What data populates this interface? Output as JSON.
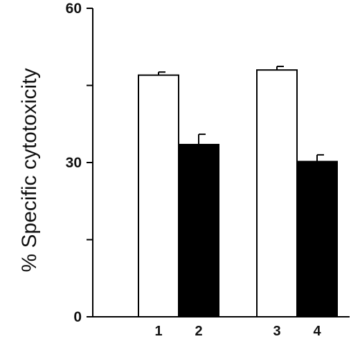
{
  "chart_data": {
    "type": "bar",
    "title": "",
    "xlabel": "",
    "ylabel": "% Specific cytotoxicity",
    "ylim": [
      0,
      60
    ],
    "yticks_labeled": [
      0,
      30,
      60
    ],
    "yticks_minor": [
      15,
      45
    ],
    "categories": [
      "1",
      "2",
      "3",
      "4"
    ],
    "values": [
      47,
      33.5,
      48,
      30.2
    ],
    "errors": [
      0.6,
      2.0,
      0.7,
      1.3
    ],
    "fills": [
      "white",
      "black",
      "white",
      "black"
    ],
    "colors": {
      "white_bar": "#ffffff",
      "black_bar": "#000000",
      "axis": "#000000"
    }
  }
}
